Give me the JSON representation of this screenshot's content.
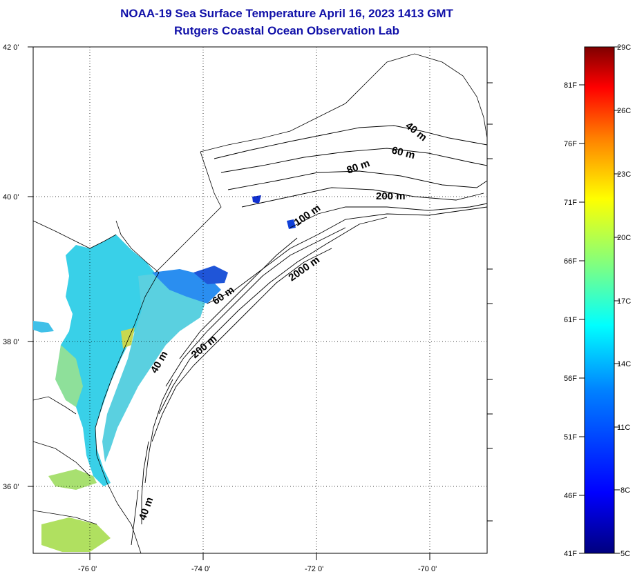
{
  "header": {
    "title": "NOAA-19 Sea Surface Temperature April 16, 2023 1413 GMT",
    "subtitle": "Rutgers Coastal Ocean Observation Lab"
  },
  "map": {
    "lat_labels": [
      "42 0'",
      "40 0'",
      "38 0'",
      "36 0'"
    ],
    "lon_labels": [
      "-76 0'",
      "-74 0'",
      "-72 0'",
      "-70 0'"
    ],
    "lat_range": [
      35.0,
      42.0
    ],
    "lon_range": [
      -77.0,
      -69.0
    ],
    "contour_labels": [
      "40 m",
      "60 m",
      "80 m",
      "200 m",
      "100 m",
      "2000 m",
      "60 m",
      "200 m",
      "40 m",
      "40 m"
    ],
    "grid": true
  },
  "colorbar": {
    "celsius_labels": [
      "29C",
      "26C",
      "23C",
      "20C",
      "17C",
      "14C",
      "11C",
      "8C",
      "5C"
    ],
    "fahrenheit_labels": [
      "81F",
      "76F",
      "71F",
      "66F",
      "61F",
      "56F",
      "51F",
      "46F",
      "41F"
    ],
    "colors": [
      "#7f0000",
      "#ff0000",
      "#ff8000",
      "#ffff00",
      "#80ff80",
      "#00ffff",
      "#0080ff",
      "#0000ff",
      "#00007f"
    ]
  }
}
